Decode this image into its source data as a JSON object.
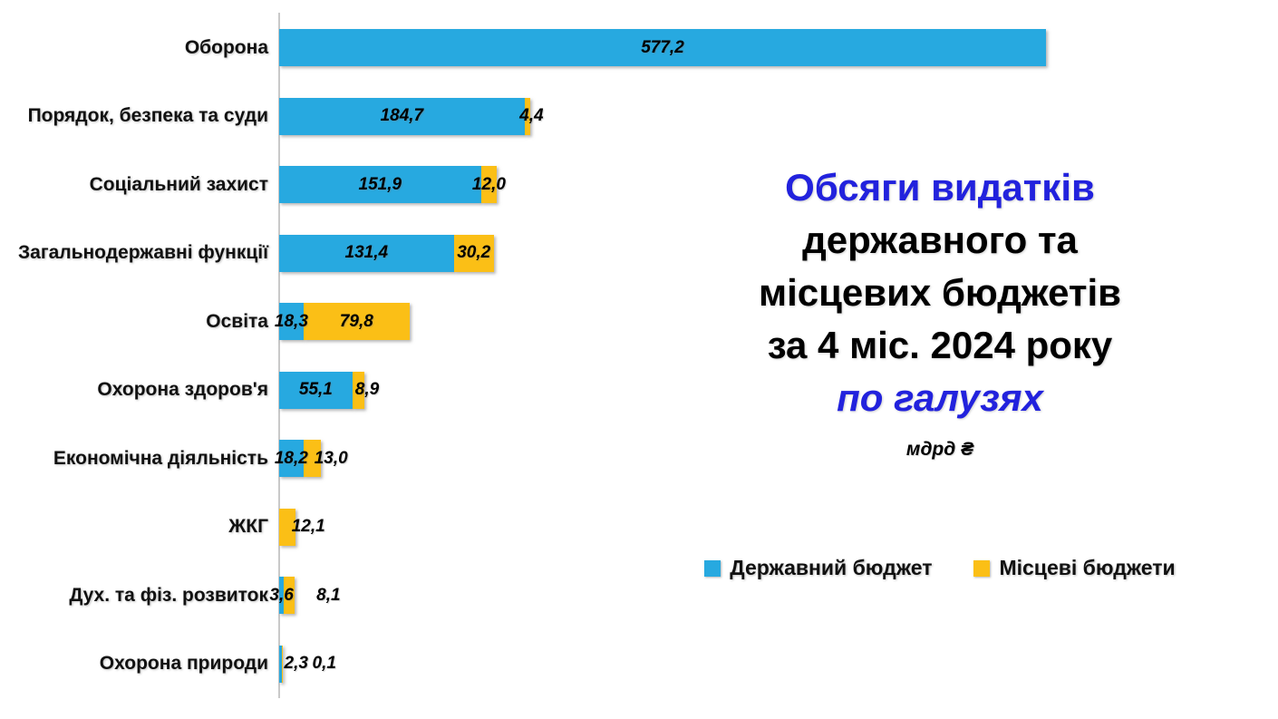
{
  "title": {
    "lines": [
      {
        "text": "Обсяги видатків",
        "color": "#2222DD",
        "italic": false
      },
      {
        "text": "державного та",
        "color": "#000000",
        "italic": false
      },
      {
        "text": "місцевих бюджетів",
        "color": "#000000",
        "italic": false
      },
      {
        "text": "за 4 міс. 2024 року",
        "color": "#000000",
        "italic": false
      },
      {
        "text": "по галузях",
        "color": "#2222DD",
        "italic": true
      }
    ],
    "units": "мдрд ₴"
  },
  "legend": {
    "items": [
      {
        "label": "Державний бюджет",
        "color": "#27A9E0"
      },
      {
        "label": "Місцеві бюджети",
        "color": "#FBBF16"
      }
    ]
  },
  "colors": {
    "state_budget": "#27A9E0",
    "local_budgets": "#FBBF16",
    "title_accent": "#2222DD",
    "axis_line": "#C9C9C9"
  },
  "chart_data": {
    "type": "bar",
    "orientation": "horizontal",
    "title": "Обсяги видатків державного та місцевих бюджетів за 4 міс. 2024 року по галузях",
    "units_label": "мдрд ₴",
    "grid": false,
    "xlim": [
      0,
      590
    ],
    "legend_position": "right-panel",
    "categories": [
      "Оборона",
      "Порядок, безпека та суди",
      "Соціальний захист",
      "Загальнодержавні функції",
      "Освіта",
      "Охорона здоров'я",
      "Економічна діяльність",
      "ЖКГ",
      "Дух. та фіз. розвиток",
      "Охорона природи"
    ],
    "series": [
      {
        "name": "Державний бюджет",
        "color": "#27A9E0",
        "values": [
          577.2,
          184.7,
          151.9,
          131.4,
          18.3,
          55.1,
          18.2,
          0,
          3.6,
          2.3
        ]
      },
      {
        "name": "Місцеві бюджети",
        "color": "#FBBF16",
        "values": [
          0,
          4.4,
          12.0,
          30.2,
          79.8,
          8.9,
          13.0,
          12.1,
          8.1,
          0.1
        ]
      }
    ],
    "rows": [
      {
        "category": "Оборона",
        "state": 577.2,
        "state_label": "577,2",
        "state_pos": "center",
        "local": 0,
        "local_label": null
      },
      {
        "category": "Порядок, безпека та суди",
        "state": 184.7,
        "state_label": "184,7",
        "state_pos": "center",
        "local": 4.4,
        "local_label": "4,4",
        "local_pos": "right",
        "local_gap": -12
      },
      {
        "category": "Соціальний захист",
        "state": 151.9,
        "state_label": "151,9",
        "state_pos": "center",
        "local": 12.0,
        "local_label": "12,0",
        "local_pos": "center"
      },
      {
        "category": "Загальнодержавні функції",
        "state": 131.4,
        "state_label": "131,4",
        "state_pos": "center",
        "local": 30.2,
        "local_label": "30,2",
        "local_pos": "center"
      },
      {
        "category": "Освіта",
        "state": 18.3,
        "state_label": "18,3",
        "state_pos": "center",
        "local": 79.8,
        "local_label": "79,8",
        "local_pos": "center"
      },
      {
        "category": "Охорона здоров'я",
        "state": 55.1,
        "state_label": "55,1",
        "state_pos": "center",
        "local": 8.9,
        "local_label": "8,9",
        "local_pos": "right",
        "local_gap": -10
      },
      {
        "category": "Економічна діяльність",
        "state": 18.2,
        "state_label": "18,2",
        "state_pos": "center",
        "local": 13.0,
        "local_label": "13,0",
        "local_pos": "right",
        "local_gap": -7
      },
      {
        "category": "ЖКГ",
        "state": 0,
        "state_label": null,
        "local": 12.1,
        "local_label": "12,1",
        "local_pos": "right",
        "local_gap": -4
      },
      {
        "category": "Дух. та фіз. розвиток",
        "state": 3.6,
        "state_label": "3,6",
        "state_pos": "center",
        "local": 8.1,
        "local_label": "8,1",
        "local_pos": "right",
        "local_gap": 24
      },
      {
        "category": "Охорона природи",
        "state": 2.3,
        "state_label": "2,3",
        "state_pos": "right",
        "state_gap": 2,
        "local": 0.1,
        "local_label": "0,1",
        "local_pos": "right",
        "local_gap": 33
      }
    ]
  }
}
